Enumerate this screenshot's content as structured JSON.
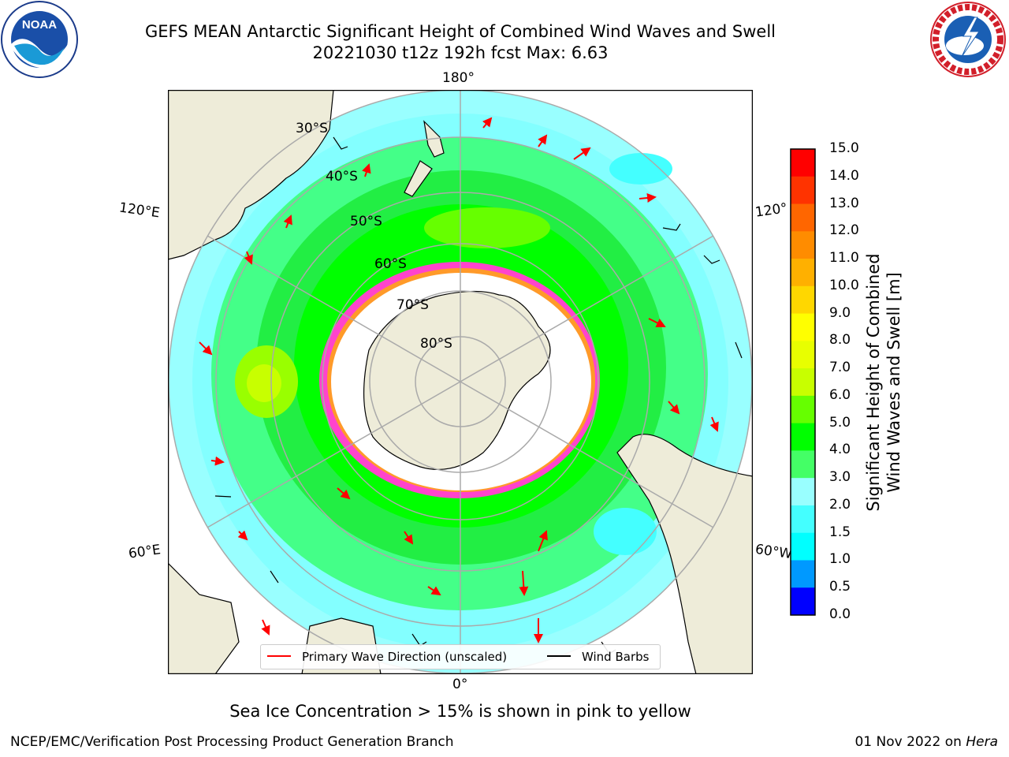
{
  "title_line1": "GEFS MEAN Antarctic Significant Height of Combined Wind Waves and Swell",
  "title_line2": "20221030 t12z 192h fcst   Max: 6.63",
  "logos": {
    "left": "noaa-logo",
    "right": "nws-logo"
  },
  "longitude_labels": {
    "top": "180°",
    "bottom": "0°",
    "upper_left": "120°E",
    "lower_left": "60°E",
    "upper_right": "120°",
    "lower_right": "60°W"
  },
  "latitude_labels": [
    "30°S",
    "40°S",
    "50°S",
    "60°S",
    "70°S",
    "80°S"
  ],
  "colorbar": {
    "label_line1": "Significant Height of Combined",
    "label_line2": "Wind Waves and Swell [m]",
    "ticks": [
      "15.0",
      "14.0",
      "13.0",
      "12.0",
      "11.0",
      "10.0",
      "9.0",
      "8.0",
      "7.0",
      "6.0",
      "5.0",
      "4.0",
      "3.0",
      "2.0",
      "1.5",
      "1.0",
      "0.5",
      "0.0"
    ],
    "colors": [
      "#ff0000",
      "#ff3300",
      "#ff6600",
      "#ff8c00",
      "#ffb000",
      "#ffd700",
      "#ffff00",
      "#e8ff00",
      "#c8ff00",
      "#66ff00",
      "#00ff00",
      "#44ff66",
      "#99ffff",
      "#44ffff",
      "#00ffff",
      "#0099ff",
      "#0000ff"
    ]
  },
  "legend": {
    "wave_label": "Primary Wave Direction (unscaled)",
    "wind_label": "Wind Barbs",
    "wave_color": "#ff0000",
    "wind_color": "#000000"
  },
  "caption": "Sea Ice Concentration > 15% is shown in pink to yellow",
  "footer": {
    "left": "NCEP/EMC/Verification Post Processing Product Generation Branch",
    "date": "01 Nov 2022 on ",
    "machine": "Hera"
  },
  "colors": {
    "land": "#eeecd9",
    "open_ocean_low": "#99ffff",
    "ice": "#ff44cc"
  }
}
